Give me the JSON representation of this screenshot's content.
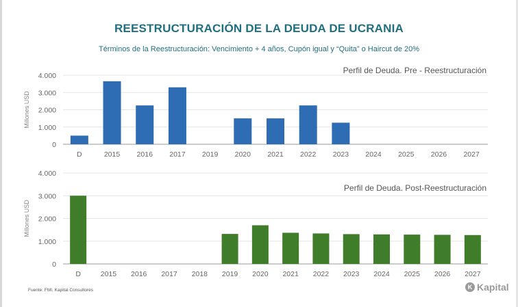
{
  "title": "REESTRUCTURACIÓN DE LA DEUDA DE UCRANIA",
  "subtitle": "Términos de la Reestructuración: Vencimiento + 4 años, Cupón igual y “Quita” o Haircut de 20%",
  "source": "Fuente: FMI, Kapital Consultores",
  "logo": "Kapital",
  "colors": {
    "title": "#1f6f7f",
    "pre_bars": "#2e6db4",
    "post_bars": "#3f7d2b"
  },
  "chart_data": [
    {
      "type": "bar",
      "title": "Perfil de Deuda. Pre - Reestructuración",
      "xlabel": "",
      "ylabel": "Millones USD",
      "categories": [
        "D",
        "2015",
        "2016",
        "2017",
        "2019",
        "2020",
        "2021",
        "2022",
        "2023",
        "2024",
        "2025",
        "2026",
        "2027"
      ],
      "values": [
        500,
        3650,
        2250,
        3300,
        0,
        1500,
        1500,
        2250,
        1250,
        0,
        0,
        0,
        0
      ],
      "ylim": [
        0,
        4000
      ],
      "yticks": [
        "0",
        "1.000",
        "2.000",
        "3.000",
        "4.000"
      ],
      "grid": true,
      "legend": "none"
    },
    {
      "type": "bar",
      "title": "Perfil de Deuda. Post-Reestructuración",
      "xlabel": "",
      "ylabel": "Millones USD",
      "categories": [
        "D",
        "2015",
        "2016",
        "2017",
        "2018",
        "2019",
        "2020",
        "2021",
        "2022",
        "2023",
        "2024",
        "2025",
        "2026",
        "2027"
      ],
      "values": [
        3000,
        0,
        0,
        0,
        0,
        1320,
        1700,
        1370,
        1340,
        1310,
        1300,
        1290,
        1280,
        1270
      ],
      "ylim": [
        0,
        4000
      ],
      "yticks": [
        "0",
        "1.000",
        "2.000",
        "3.000",
        "4.000"
      ],
      "grid": true,
      "legend": "none"
    }
  ]
}
